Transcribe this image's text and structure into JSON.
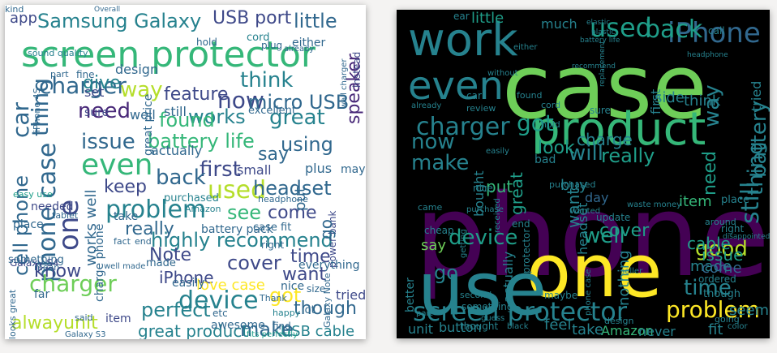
{
  "colors": {
    "page_background": "#f4f3f2",
    "left_panel_background": "#ffffff",
    "right_panel_background": "#000000",
    "palette": [
      "#440154",
      "#482878",
      "#3e4989",
      "#31688e",
      "#26828e",
      "#1f9e89",
      "#35b779",
      "#6ece58",
      "#b5de2b",
      "#fde725"
    ]
  },
  "left_cloud": {
    "words": [
      {
        "text": "screen protector",
        "c": 6,
        "s": 44
      },
      {
        "text": "Samsung Galaxy",
        "c": 4,
        "s": 24
      },
      {
        "text": "USB port",
        "c": 2,
        "s": 22
      },
      {
        "text": "little",
        "c": 3,
        "s": 24
      },
      {
        "text": "charger",
        "c": 3,
        "s": 28
      },
      {
        "text": "car",
        "c": 3,
        "s": 28,
        "r": 1
      },
      {
        "text": "thing",
        "c": 3,
        "s": 28,
        "r": 1
      },
      {
        "text": "need",
        "c": 1,
        "s": 26
      },
      {
        "text": "give",
        "c": 4,
        "s": 22
      },
      {
        "text": "way",
        "c": 8,
        "s": 26
      },
      {
        "text": "feature",
        "c": 2,
        "s": 22
      },
      {
        "text": "think",
        "c": 4,
        "s": 26
      },
      {
        "text": "now",
        "c": 2,
        "s": 28
      },
      {
        "text": "micro USB",
        "c": 3,
        "s": 24
      },
      {
        "text": "works",
        "c": 4,
        "s": 24
      },
      {
        "text": "great",
        "c": 4,
        "s": 26
      },
      {
        "text": "found",
        "c": 6,
        "s": 24
      },
      {
        "text": "speaker",
        "c": 1,
        "s": 22,
        "r": 1
      },
      {
        "text": "issue",
        "c": 3,
        "s": 26
      },
      {
        "text": "battery life",
        "c": 6,
        "s": 24
      },
      {
        "text": "say",
        "c": 3,
        "s": 22
      },
      {
        "text": "using",
        "c": 3,
        "s": 24
      },
      {
        "text": "even",
        "c": 6,
        "s": 36
      },
      {
        "text": "first",
        "c": 2,
        "s": 26
      },
      {
        "text": "back",
        "c": 3,
        "s": 26
      },
      {
        "text": "keep",
        "c": 2,
        "s": 22
      },
      {
        "text": "used",
        "c": 8,
        "s": 30
      },
      {
        "text": "headset",
        "c": 3,
        "s": 24
      },
      {
        "text": "problem",
        "c": 4,
        "s": 30
      },
      {
        "text": "see",
        "c": 6,
        "s": 24
      },
      {
        "text": "come",
        "c": 2,
        "s": 22
      },
      {
        "text": "highly recommend",
        "c": 4,
        "s": 24
      },
      {
        "text": "cover",
        "c": 2,
        "s": 24
      },
      {
        "text": "time",
        "c": 2,
        "s": 22
      },
      {
        "text": "phone case",
        "c": 3,
        "s": 30,
        "r": 1
      },
      {
        "text": "cell phone",
        "c": 3,
        "s": 24,
        "r": 1
      },
      {
        "text": "one",
        "c": 2,
        "s": 34,
        "r": 1
      },
      {
        "text": "really",
        "c": 3,
        "s": 22
      },
      {
        "text": "Note",
        "c": 2,
        "s": 22
      },
      {
        "text": "want",
        "c": 2,
        "s": 22
      },
      {
        "text": "iPhone",
        "c": 2,
        "s": 20
      },
      {
        "text": "love case",
        "c": 9,
        "s": 18
      },
      {
        "text": "device",
        "c": 4,
        "s": 30
      },
      {
        "text": "got",
        "c": 9,
        "s": 24
      },
      {
        "text": "charger",
        "c": 7,
        "s": 28
      },
      {
        "text": "know",
        "c": 2,
        "s": 22
      },
      {
        "text": "perfect",
        "c": 4,
        "s": 24
      },
      {
        "text": "make",
        "c": 3,
        "s": 24
      },
      {
        "text": "though",
        "c": 3,
        "s": 22
      },
      {
        "text": "alwayunit",
        "c": 8,
        "s": 22
      },
      {
        "text": "great product",
        "c": 4,
        "s": 20
      },
      {
        "text": "USB cable",
        "c": 4,
        "s": 18
      },
      {
        "text": "app",
        "c": 2,
        "s": 18
      },
      {
        "text": "Overall",
        "c": 3,
        "s": 9
      },
      {
        "text": "cord",
        "c": 4,
        "s": 13
      },
      {
        "text": "either",
        "c": 3,
        "s": 14
      },
      {
        "text": "instead",
        "c": 2,
        "s": 12,
        "r": 1
      },
      {
        "text": "sound quality",
        "c": 4,
        "s": 11
      },
      {
        "text": "design",
        "c": 3,
        "s": 16
      },
      {
        "text": "great price",
        "c": 3,
        "s": 14,
        "r": 1
      },
      {
        "text": "iPhone 4S",
        "c": 3,
        "s": 11,
        "r": 1
      },
      {
        "text": "still",
        "c": 3,
        "s": 16
      },
      {
        "text": "set",
        "c": 2,
        "s": 16
      },
      {
        "text": "well",
        "c": 3,
        "s": 16
      },
      {
        "text": "sure",
        "c": 2,
        "s": 14
      },
      {
        "text": "excellent",
        "c": 3,
        "s": 13
      },
      {
        "text": "actually",
        "c": 3,
        "s": 16
      },
      {
        "text": "small",
        "c": 2,
        "s": 16
      },
      {
        "text": "plus",
        "c": 3,
        "s": 16
      },
      {
        "text": "purchased",
        "c": 4,
        "s": 13
      },
      {
        "text": "take",
        "c": 3,
        "s": 14
      },
      {
        "text": "Amazon",
        "c": 4,
        "s": 11
      },
      {
        "text": "battery pack",
        "c": 3,
        "s": 14
      },
      {
        "text": "case fit",
        "c": 3,
        "s": 13
      },
      {
        "text": "power bank",
        "c": 2,
        "s": 12,
        "r": 1
      },
      {
        "text": "needed",
        "c": 2,
        "s": 14
      },
      {
        "text": "tablet",
        "c": 3,
        "s": 11
      },
      {
        "text": "place",
        "c": 3,
        "s": 14
      },
      {
        "text": "Galaxy S4",
        "c": 2,
        "s": 12
      },
      {
        "text": "works well",
        "c": 3,
        "s": 18,
        "r": 1
      },
      {
        "text": "charge phone",
        "c": 3,
        "s": 14,
        "r": 1
      },
      {
        "text": "fact",
        "c": 3,
        "s": 11
      },
      {
        "text": "end",
        "c": 3,
        "s": 11
      },
      {
        "text": "made",
        "c": 3,
        "s": 13
      },
      {
        "text": "easily",
        "c": 3,
        "s": 14
      },
      {
        "text": "right",
        "c": 3,
        "s": 12
      },
      {
        "text": "everything",
        "c": 3,
        "s": 14
      },
      {
        "text": "size",
        "c": 3,
        "s": 12
      },
      {
        "text": "tried",
        "c": 2,
        "s": 16
      },
      {
        "text": "lot",
        "c": 3,
        "s": 13
      },
      {
        "text": "happy",
        "c": 4,
        "s": 11
      },
      {
        "text": "find",
        "c": 3,
        "s": 12
      },
      {
        "text": "etc",
        "c": 3,
        "s": 12
      },
      {
        "text": "awesome",
        "c": 3,
        "s": 14
      },
      {
        "text": "said",
        "c": 3,
        "s": 11
      },
      {
        "text": "item",
        "c": 2,
        "s": 14
      },
      {
        "text": "far",
        "c": 3,
        "s": 14
      },
      {
        "text": "something",
        "c": 3,
        "s": 13
      },
      {
        "text": "looks great",
        "c": 3,
        "s": 11,
        "r": 1
      },
      {
        "text": "Galaxy S3",
        "c": 3,
        "s": 10
      },
      {
        "text": "fits perfectly",
        "c": 5,
        "s": 10
      },
      {
        "text": "mean",
        "c": 3,
        "s": 11
      },
      {
        "text": "well made",
        "c": 3,
        "s": 10
      },
      {
        "text": "Galaxy Note",
        "c": 3,
        "s": 11,
        "r": 1
      },
      {
        "text": "nice",
        "c": 3,
        "s": 14
      },
      {
        "text": "Thank",
        "c": 3,
        "s": 11
      },
      {
        "text": "may",
        "c": 3,
        "s": 14
      },
      {
        "text": "go",
        "c": 3,
        "s": 20,
        "r": 1
      },
      {
        "text": "headphone",
        "c": 3,
        "s": 11
      },
      {
        "text": "put",
        "c": 3,
        "s": 18,
        "r": 1
      },
      {
        "text": "easy use",
        "c": 5,
        "s": 11
      },
      {
        "text": "wall charger",
        "c": 3,
        "s": 10,
        "r": 1
      },
      {
        "text": "hold",
        "c": 3,
        "s": 12
      },
      {
        "text": "plug",
        "c": 3,
        "s": 12
      },
      {
        "text": "already",
        "c": 3,
        "s": 10
      },
      {
        "text": "part",
        "c": 3,
        "s": 11
      },
      {
        "text": "fine",
        "c": 3,
        "s": 12
      },
      {
        "text": "kind",
        "c": 3,
        "s": 11
      }
    ]
  },
  "right_cloud": {
    "words": [
      {
        "text": "phone",
        "c": 0,
        "s": 140
      },
      {
        "text": "case",
        "c": 7,
        "s": 110
      },
      {
        "text": "one",
        "c": 9,
        "s": 90
      },
      {
        "text": "use",
        "c": 4,
        "s": 90
      },
      {
        "text": "work",
        "c": 4,
        "s": 56
      },
      {
        "text": "product",
        "c": 6,
        "s": 56
      },
      {
        "text": "even",
        "c": 4,
        "s": 48
      },
      {
        "text": "iPhone",
        "c": 3,
        "s": 34
      },
      {
        "text": "used",
        "c": 5,
        "s": 32
      },
      {
        "text": "back",
        "c": 5,
        "s": 30
      },
      {
        "text": "charger",
        "c": 4,
        "s": 30
      },
      {
        "text": "got",
        "c": 5,
        "s": 28
      },
      {
        "text": "now",
        "c": 4,
        "s": 26
      },
      {
        "text": "make",
        "c": 4,
        "s": 26
      },
      {
        "text": "will",
        "c": 4,
        "s": 26
      },
      {
        "text": "charge",
        "c": 4,
        "s": 20
      },
      {
        "text": "really",
        "c": 5,
        "s": 24
      },
      {
        "text": "way",
        "c": 4,
        "s": 26,
        "r": 1
      },
      {
        "text": "battery",
        "c": 4,
        "s": 26,
        "r": 1
      },
      {
        "text": "screen protector",
        "c": 4,
        "s": 32
      },
      {
        "text": "device",
        "c": 5,
        "s": 26
      },
      {
        "text": "problem",
        "c": 9,
        "s": 28
      },
      {
        "text": "time",
        "c": 4,
        "s": 26
      },
      {
        "text": "good",
        "c": 8,
        "s": 26
      },
      {
        "text": "well",
        "c": 5,
        "s": 26
      },
      {
        "text": "still",
        "c": 4,
        "s": 30,
        "r": 1
      },
      {
        "text": "cover",
        "c": 5,
        "s": 22
      },
      {
        "text": "thing",
        "c": 4,
        "s": 26,
        "r": 1
      },
      {
        "text": "need",
        "c": 5,
        "s": 22,
        "r": 1
      },
      {
        "text": "item",
        "c": 6,
        "s": 18
      },
      {
        "text": "issue",
        "c": 5,
        "s": 20
      },
      {
        "text": "cable",
        "c": 5,
        "s": 20
      },
      {
        "text": "made",
        "c": 4,
        "s": 18
      },
      {
        "text": "come",
        "c": 3,
        "s": 18
      },
      {
        "text": "side",
        "c": 4,
        "s": 18
      },
      {
        "text": "think",
        "c": 4,
        "s": 18
      },
      {
        "text": "look",
        "c": 5,
        "s": 22
      },
      {
        "text": "great",
        "c": 5,
        "s": 20,
        "r": 1
      },
      {
        "text": "put",
        "c": 6,
        "s": 20
      },
      {
        "text": "say",
        "c": 7,
        "s": 18
      },
      {
        "text": "Amazon",
        "c": 6,
        "s": 16
      },
      {
        "text": "button",
        "c": 4,
        "s": 16
      },
      {
        "text": "unit",
        "c": 4,
        "s": 16
      },
      {
        "text": "feel",
        "c": 4,
        "s": 18
      },
      {
        "text": "take",
        "c": 4,
        "s": 18
      },
      {
        "text": "never",
        "c": 4,
        "s": 16
      },
      {
        "text": "fit",
        "c": 4,
        "s": 18
      },
      {
        "text": "seem",
        "c": 4,
        "s": 18
      },
      {
        "text": "tried",
        "c": 4,
        "s": 16,
        "r": 1
      },
      {
        "text": "better",
        "c": 4,
        "s": 14,
        "r": 1
      },
      {
        "text": "go",
        "c": 4,
        "s": 24
      },
      {
        "text": "day",
        "c": 3,
        "s": 16
      },
      {
        "text": "want",
        "c": 4,
        "s": 20,
        "r": 1
      },
      {
        "text": "buy",
        "c": 4,
        "s": 18
      },
      {
        "text": "headset",
        "c": 4,
        "s": 16,
        "r": 1
      },
      {
        "text": "actually",
        "c": 4,
        "s": 16,
        "r": 1
      },
      {
        "text": "bought",
        "c": 4,
        "s": 16,
        "r": 1
      },
      {
        "text": "bad",
        "c": 4,
        "s": 14
      },
      {
        "text": "little",
        "c": 5,
        "s": 18
      },
      {
        "text": "ear",
        "c": 4,
        "s": 12
      },
      {
        "text": "much",
        "c": 4,
        "s": 16
      },
      {
        "text": "first",
        "c": 4,
        "s": 16,
        "r": 1
      },
      {
        "text": "place",
        "c": 4,
        "s": 13
      },
      {
        "text": "right",
        "c": 4,
        "s": 12
      },
      {
        "text": "ordered",
        "c": 4,
        "s": 12
      },
      {
        "text": "though",
        "c": 4,
        "s": 13
      },
      {
        "text": "going",
        "c": 4,
        "s": 11
      },
      {
        "text": "maybe",
        "c": 4,
        "s": 12
      },
      {
        "text": "nothing",
        "c": 4,
        "s": 18,
        "r": 1
      },
      {
        "text": "update",
        "c": 4,
        "s": 12
      },
      {
        "text": "around",
        "c": 4,
        "s": 11
      },
      {
        "text": "nice",
        "c": 4,
        "s": 12
      },
      {
        "text": "cheap",
        "c": 4,
        "s": 12
      },
      {
        "text": "came",
        "c": 4,
        "s": 11
      },
      {
        "text": "second",
        "c": 4,
        "s": 11
      },
      {
        "text": "something",
        "c": 4,
        "s": 12
      },
      {
        "text": "thought",
        "c": 4,
        "s": 12
      },
      {
        "text": "waste money",
        "c": 4,
        "s": 10
      },
      {
        "text": "sure",
        "c": 4,
        "s": 12
      },
      {
        "text": "car",
        "c": 4,
        "s": 12
      },
      {
        "text": "end",
        "c": 4,
        "s": 12
      },
      {
        "text": "design",
        "c": 4,
        "s": 11
      },
      {
        "text": "cord",
        "c": 4,
        "s": 11
      },
      {
        "text": "found",
        "c": 4,
        "s": 11
      },
      {
        "text": "hold",
        "c": 4,
        "s": 11
      },
      {
        "text": "guess",
        "c": 4,
        "s": 10
      },
      {
        "text": "seller",
        "c": 4,
        "s": 10
      },
      {
        "text": "color",
        "c": 4,
        "s": 10
      },
      {
        "text": "easily",
        "c": 4,
        "s": 10
      },
      {
        "text": "purchase",
        "c": 4,
        "s": 10
      },
      {
        "text": "received",
        "c": 4,
        "s": 10,
        "r": 1
      },
      {
        "text": "wanted",
        "c": 4,
        "s": 10
      },
      {
        "text": "review",
        "c": 4,
        "s": 11
      },
      {
        "text": "purchased",
        "c": 4,
        "s": 11
      },
      {
        "text": "part",
        "c": 4,
        "s": 10
      },
      {
        "text": "getting",
        "c": 4,
        "s": 10,
        "r": 1
      },
      {
        "text": "without",
        "c": 4,
        "s": 10
      },
      {
        "text": "either",
        "c": 4,
        "s": 10
      },
      {
        "text": "already",
        "c": 4,
        "s": 10
      },
      {
        "text": "headphone",
        "c": 4,
        "s": 9
      },
      {
        "text": "plastic",
        "c": 4,
        "s": 9
      },
      {
        "text": "recommend",
        "c": 4,
        "s": 9
      },
      {
        "text": "replacement",
        "c": 4,
        "s": 9,
        "r": 1
      },
      {
        "text": "disappointed",
        "c": 4,
        "s": 9
      },
      {
        "text": "elastic",
        "c": 4,
        "s": 9
      },
      {
        "text": "call",
        "c": 4,
        "s": 12
      },
      {
        "text": "battery life",
        "c": 4,
        "s": 9
      },
      {
        "text": "phone case",
        "c": 4,
        "s": 10,
        "r": 1
      },
      {
        "text": "protector",
        "c": 4,
        "s": 12,
        "r": 1
      },
      {
        "text": "black",
        "c": 4,
        "s": 10
      }
    ]
  }
}
